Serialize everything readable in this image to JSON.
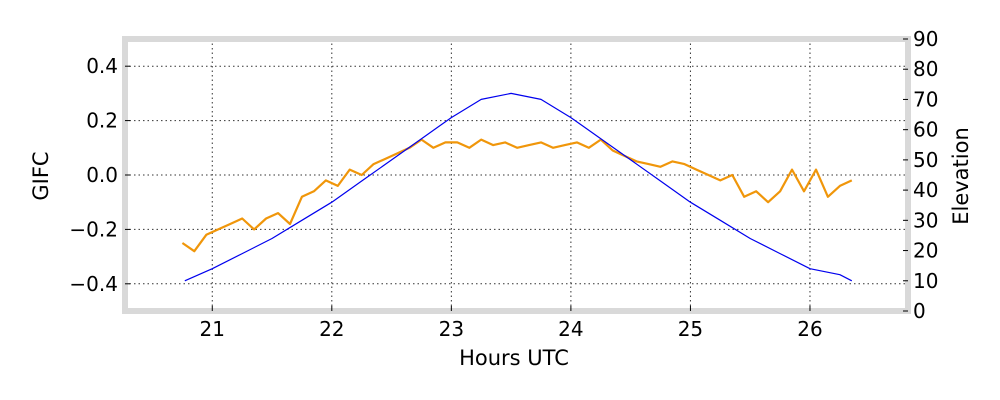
{
  "chart_data": {
    "type": "line",
    "xlabel": "Hours UTC",
    "ylabel": "GIFC",
    "y2label": "Elevation",
    "xlim": [
      20.27,
      26.82
    ],
    "ylim": [
      -0.5,
      0.5
    ],
    "y2lim": [
      0,
      90
    ],
    "xticks": [
      21,
      22,
      23,
      24,
      25,
      26
    ],
    "xtick_labels": [
      "21",
      "22",
      "23",
      "24",
      "25",
      "26"
    ],
    "yticks": [
      -0.4,
      -0.2,
      0.0,
      0.2,
      0.4
    ],
    "ytick_labels": [
      "−0.4",
      "−0.2",
      "0.0",
      "0.2",
      "0.4"
    ],
    "y2ticks": [
      0,
      10,
      20,
      30,
      40,
      50,
      60,
      70,
      80,
      90
    ],
    "y2tick_labels": [
      "0",
      "10",
      "20",
      "30",
      "40",
      "50",
      "60",
      "70",
      "80",
      "90"
    ],
    "grid": true,
    "colors": {
      "gifc": "#f0960a",
      "elevation": "#0000ee",
      "frame": "#d9d9d9"
    },
    "series": [
      {
        "axis": "left",
        "x": [
          20.75,
          20.85,
          20.95,
          21.05,
          21.15,
          21.25,
          21.35,
          21.45,
          21.55,
          21.65,
          21.75,
          21.85,
          21.95,
          22.05,
          22.15,
          22.25,
          22.35,
          22.45,
          22.55,
          22.65,
          22.75,
          22.85,
          22.95,
          23.05,
          23.15,
          23.25,
          23.35,
          23.45,
          23.55,
          23.65,
          23.75,
          23.85,
          23.95,
          24.05,
          24.15,
          24.25,
          24.35,
          24.45,
          24.55,
          24.65,
          24.75,
          24.85,
          24.95,
          25.05,
          25.15,
          25.25,
          25.35,
          25.45,
          25.55,
          25.65,
          25.75,
          25.85,
          25.95,
          26.05,
          26.15,
          26.25,
          26.35
        ],
        "values": [
          -0.25,
          -0.28,
          -0.22,
          -0.2,
          -0.18,
          -0.16,
          -0.2,
          -0.16,
          -0.14,
          -0.18,
          -0.08,
          -0.06,
          -0.02,
          -0.04,
          0.02,
          0.0,
          0.04,
          0.06,
          0.08,
          0.1,
          0.13,
          0.1,
          0.12,
          0.12,
          0.1,
          0.13,
          0.11,
          0.12,
          0.1,
          0.11,
          0.12,
          0.1,
          0.11,
          0.12,
          0.1,
          0.13,
          0.09,
          0.07,
          0.05,
          0.04,
          0.03,
          0.05,
          0.04,
          0.02,
          0.0,
          -0.02,
          0.0,
          -0.08,
          -0.06,
          -0.1,
          -0.06,
          0.02,
          -0.06,
          0.02,
          -0.08,
          -0.04,
          -0.02
        ]
      },
      {
        "axis": "right",
        "x": [
          20.77,
          21.0,
          21.25,
          21.5,
          21.75,
          22.0,
          22.25,
          22.5,
          22.75,
          23.0,
          23.25,
          23.5,
          23.75,
          24.0,
          24.25,
          24.5,
          24.75,
          25.0,
          25.25,
          25.5,
          25.75,
          26.0,
          26.25,
          26.35
        ],
        "values": [
          10,
          14,
          19,
          24,
          30,
          36,
          43,
          50,
          57,
          64,
          70,
          72,
          70,
          64,
          57,
          50,
          43,
          36,
          30,
          24,
          19,
          14,
          12,
          10
        ]
      }
    ]
  }
}
